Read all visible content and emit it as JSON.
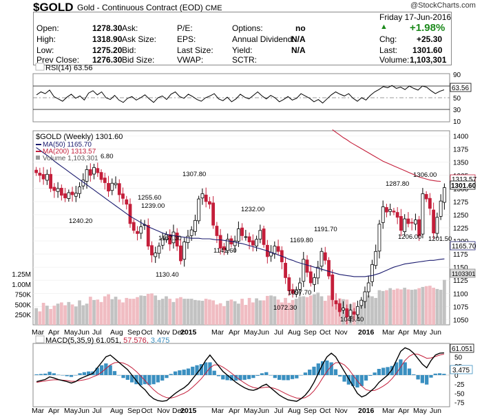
{
  "header": {
    "symbol": "$GOLD",
    "description": "Gold - Continuous Contract (EOD)",
    "exchange": "CME",
    "brand": "@StockCharts.com",
    "date": "Friday 17-Jun-2016",
    "open_label": "Open:",
    "open": "1278.30",
    "high_label": "High:",
    "high": "1318.90",
    "low_label": "Low:",
    "low": "1275.20",
    "prevclose_label": "Prev Close:",
    "prevclose": "1276.30",
    "ask_label": "Ask:",
    "asksize_label": "Ask Size:",
    "bid_label": "Bid:",
    "bidsize_label": "Bid Size:",
    "pe_label": "P/E:",
    "eps_label": "EPS:",
    "lastsize_label": "Last Size:",
    "vwap_label": "VWAP:",
    "options_label": "Options:",
    "options": "no",
    "dividend_label": "Annual Dividend:",
    "dividend": "N/A",
    "yield_label": "Yield:",
    "yield": "N/A",
    "sctr_label": "SCTR:",
    "change_pct": "+1.98%",
    "chg_label": "Chg:",
    "chg": "+25.30",
    "last_label": "Last:",
    "last": "1301.60",
    "volume_label": "Volume:",
    "volume": "1,103,301"
  },
  "chart_data": [
    {
      "type": "line",
      "panel": "rsi",
      "legend": "RSI(14) 63.56",
      "last_value_label": "63.56",
      "ylim": [
        10,
        90
      ],
      "yticks": [
        10,
        30,
        50,
        70,
        90
      ],
      "levels": [
        70,
        50,
        30
      ],
      "values": [
        55,
        60,
        57,
        63,
        52,
        48,
        44,
        51,
        56,
        49,
        53,
        46,
        58,
        62,
        55,
        60,
        50,
        47,
        54,
        46,
        42,
        49,
        52,
        46,
        50,
        55,
        48,
        42,
        50,
        53,
        47,
        56,
        60,
        52,
        49,
        56,
        52,
        47,
        44,
        50,
        53,
        57,
        48,
        45,
        51,
        43,
        48,
        56,
        51,
        48,
        54,
        60,
        53,
        48,
        54,
        50,
        43,
        47,
        52,
        46,
        49,
        57,
        53,
        49,
        43,
        47,
        41,
        48,
        55,
        60,
        56,
        53,
        57,
        49,
        44,
        50,
        46,
        54,
        60,
        64,
        69,
        67,
        71,
        66,
        68,
        64,
        70,
        66,
        63,
        70,
        68,
        62,
        57,
        61,
        63.56
      ]
    },
    {
      "type": "candlestick",
      "panel": "price",
      "legend": "$GOLD (Weekly) 1301.60",
      "ma50_legend": "MA(50) 1165.70",
      "ma200_legend": "MA(200) 1313.57",
      "volume_legend": "Volume 1,103,301",
      "yticks": [
        1050,
        1075,
        1100,
        1125,
        1150,
        1175,
        1200,
        1225,
        1250,
        1275,
        1300,
        1325,
        1350,
        1375,
        1400
      ],
      "ylim": [
        1040,
        1410
      ],
      "price_tags": [
        "1313.57",
        "1301.60",
        "1165.70"
      ],
      "annotations": [
        "6.80",
        "1307.80",
        "1255.60",
        "1239.00",
        "1240.20",
        "1232.00",
        "1191.70",
        "1169.80",
        "1167.30",
        "1141.60",
        "1130.40",
        "1097.70",
        "1072.30",
        "1045.40",
        "1287.80",
        "1306.00",
        "1206.00",
        "1201.50"
      ],
      "close": [
        1330,
        1325,
        1318,
        1327,
        1300,
        1296,
        1300,
        1287,
        1282,
        1292,
        1288,
        1291,
        1303,
        1316,
        1336,
        1325,
        1340,
        1330,
        1317,
        1311,
        1295,
        1310,
        1310,
        1288,
        1281,
        1270,
        1233,
        1220,
        1214,
        1227,
        1231,
        1190,
        1173,
        1177,
        1190,
        1205,
        1212,
        1194,
        1217,
        1190,
        1162,
        1198,
        1209,
        1221,
        1239,
        1280,
        1290,
        1275,
        1270,
        1230,
        1210,
        1186,
        1183,
        1203,
        1194,
        1200,
        1223,
        1210,
        1208,
        1198,
        1192,
        1203,
        1220,
        1193,
        1170,
        1178,
        1190,
        1180,
        1160,
        1130,
        1105,
        1100,
        1107,
        1120,
        1165,
        1140,
        1120,
        1130,
        1150,
        1180,
        1163,
        1133,
        1088,
        1080,
        1065,
        1072,
        1055,
        1068,
        1060,
        1075,
        1087,
        1103,
        1120,
        1155,
        1180,
        1232,
        1265,
        1255,
        1260,
        1255,
        1245,
        1220,
        1242,
        1233,
        1234,
        1240,
        1210,
        1290,
        1280,
        1262,
        1215,
        1245,
        1276,
        1301.6
      ],
      "ma50": [
        1378,
        1373,
        1368,
        1363,
        1358,
        1352,
        1347,
        1342,
        1337,
        1332,
        1327,
        1322,
        1317,
        1312,
        1307,
        1302,
        1297,
        1292,
        1287,
        1282,
        1277,
        1272,
        1267,
        1262,
        1257,
        1252,
        1247,
        1243,
        1239,
        1235,
        1231,
        1227,
        1224,
        1221,
        1218,
        1215,
        1213,
        1211,
        1210,
        1209,
        1208,
        1207,
        1206,
        1205,
        1205,
        1205,
        1204,
        1204,
        1204,
        1203,
        1202,
        1202,
        1201,
        1200,
        1199,
        1198,
        1196,
        1195,
        1193,
        1191,
        1189,
        1187,
        1185,
        1183,
        1181,
        1178,
        1176,
        1173,
        1171,
        1168,
        1165,
        1163,
        1160,
        1158,
        1156,
        1154,
        1152,
        1150,
        1148,
        1146,
        1144,
        1142,
        1140,
        1138,
        1136,
        1135,
        1134,
        1133,
        1132,
        1132,
        1132,
        1132,
        1133,
        1134,
        1136,
        1138,
        1141,
        1144,
        1147,
        1150,
        1152,
        1154,
        1156,
        1157,
        1158,
        1159,
        1160,
        1161,
        1162,
        1163,
        1163,
        1164,
        1165,
        1165.7
      ],
      "ma200": [
        1412,
        1407,
        1402,
        1397,
        1393,
        1388,
        1384,
        1380,
        1376,
        1372,
        1368,
        1364,
        1360,
        1356,
        1352,
        1349,
        1346,
        1343,
        1340,
        1337,
        1334,
        1331,
        1328,
        1325,
        1322,
        1320,
        1318,
        1316,
        1315,
        1314,
        1313.57
      ],
      "ma200_start_index": 82,
      "volume": [
        410,
        330,
        540,
        470,
        390,
        470,
        520,
        550,
        480,
        560,
        500,
        450,
        600,
        480,
        520,
        690,
        610,
        620,
        560,
        700,
        750,
        630,
        690,
        620,
        550,
        660,
        640,
        640,
        680,
        720,
        710,
        760,
        770,
        720,
        610,
        640,
        700,
        640,
        560,
        650,
        680,
        640,
        640,
        640,
        610,
        600,
        590,
        640,
        620,
        600,
        500,
        530,
        460,
        590,
        620,
        580,
        520,
        640,
        490,
        660,
        550,
        650,
        600,
        600,
        710,
        720,
        700,
        620,
        550,
        660,
        540,
        610,
        640,
        690,
        700,
        680,
        720,
        750,
        790,
        700,
        590,
        720,
        730,
        600,
        650,
        630,
        620,
        510,
        550,
        380,
        590,
        740,
        720,
        700,
        660,
        850,
        830,
        850,
        900,
        860,
        890,
        870,
        910,
        870,
        860,
        870,
        900,
        930,
        950,
        960,
        910,
        880,
        860,
        1103
      ],
      "volume_yticks": [
        "250K",
        "500K",
        "750K",
        "1.00M",
        "1.25M"
      ],
      "volume_tag": "1103301"
    },
    {
      "type": "line",
      "panel": "macd",
      "legend": "MACD(5,35,9) 61.051, 57.576, 3.475",
      "legend_macd": "MACD(5,35,9) 61.051,",
      "legend_signal": "57.576,",
      "legend_hist": "3.475",
      "yticks": [
        -75,
        -50,
        -25,
        0,
        25,
        50
      ],
      "ylim": [
        -85,
        85
      ],
      "tags": [
        "61.051",
        "3.475"
      ],
      "macd": [
        -18,
        -15,
        -12,
        -5,
        -8,
        -12,
        -15,
        -18,
        -22,
        -18,
        -10,
        -5,
        0,
        5,
        20,
        35,
        50,
        55,
        45,
        35,
        25,
        15,
        0,
        -15,
        -30,
        -40,
        -55,
        -65,
        -70,
        -72,
        -70,
        -60,
        -50,
        -42,
        -35,
        -25,
        -10,
        5,
        20,
        40,
        55,
        40,
        25,
        10,
        0,
        -10,
        -20,
        -28,
        -35,
        -40,
        -42,
        -38,
        -30,
        -25,
        -35,
        -45,
        -55,
        -62,
        -68,
        -70,
        -72,
        -65,
        -55,
        -40,
        -20,
        5,
        30,
        50,
        60,
        50,
        30,
        10,
        -10,
        -30,
        -50,
        -60,
        -55,
        -45,
        -35,
        -20,
        -10,
        0,
        15,
        40,
        65,
        75,
        70,
        60,
        45,
        30,
        20,
        40,
        55,
        60,
        61.051
      ],
      "signal": [
        -20,
        -18,
        -16,
        -14,
        -13,
        -13,
        -14,
        -15,
        -17,
        -17,
        -15,
        -13,
        -10,
        -5,
        0,
        8,
        18,
        28,
        34,
        35,
        33,
        28,
        20,
        10,
        -2,
        -15,
        -28,
        -40,
        -50,
        -57,
        -62,
        -63,
        -60,
        -55,
        -50,
        -43,
        -33,
        -22,
        -10,
        5,
        20,
        28,
        28,
        22,
        14,
        5,
        -5,
        -14,
        -22,
        -29,
        -34,
        -36,
        -35,
        -33,
        -34,
        -37,
        -42,
        -48,
        -54,
        -59,
        -63,
        -64,
        -62,
        -55,
        -43,
        -27,
        -8,
        10,
        25,
        34,
        34,
        28,
        16,
        0,
        -16,
        -30,
        -40,
        -43,
        -42,
        -37,
        -30,
        -22,
        -10,
        5,
        22,
        40,
        52,
        58,
        57,
        52,
        46,
        47,
        51,
        55,
        57.576
      ]
    }
  ],
  "xaxis": {
    "labels": [
      "Mar",
      "Apr",
      "May",
      "Jun",
      "Jul",
      "Aug",
      "Sep",
      "Oct",
      "Nov",
      "Dec",
      "2015",
      "Mar",
      "Apr",
      "May",
      "Jun",
      "Jul",
      "Aug",
      "Sep",
      "Oct",
      "Nov",
      "2016",
      "Mar",
      "Apr",
      "May",
      "Jun"
    ],
    "bold": [
      "2015",
      "2016"
    ]
  }
}
